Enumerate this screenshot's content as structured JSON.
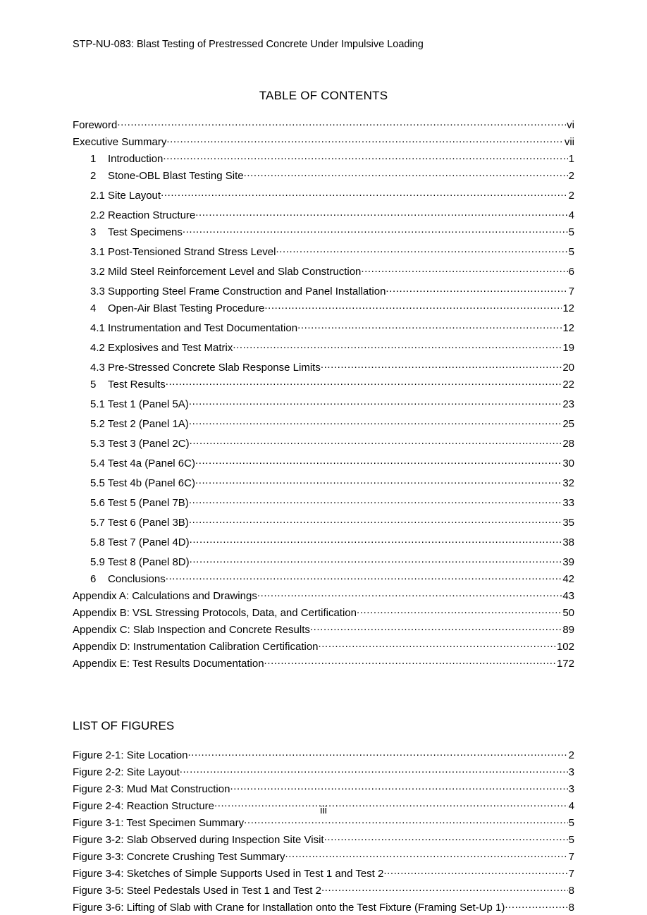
{
  "header": "STP-NU-083: Blast Testing of Prestressed Concrete Under Impulsive Loading",
  "toc_title": "TABLE OF CONTENTS",
  "lof_title": "LIST OF FIGURES",
  "page_number": "iii",
  "toc": [
    {
      "num": "",
      "label": "Foreword",
      "page": "vi",
      "indent": 0
    },
    {
      "num": "",
      "label": "Executive Summary",
      "page": " vii",
      "indent": 0
    },
    {
      "num": "1",
      "label": "Introduction",
      "page": "1",
      "indent": 1
    },
    {
      "num": "2",
      "label": "Stone-OBL Blast Testing Site",
      "page": "2",
      "indent": 1
    },
    {
      "num": "",
      "label": "2.1 Site Layout",
      "page": "2",
      "indent": 2,
      "gap": true
    },
    {
      "num": "",
      "label": "2.2 Reaction Structure",
      "page": "4",
      "indent": 2,
      "gap": true
    },
    {
      "num": "3",
      "label": "Test Specimens",
      "page": "5",
      "indent": 1
    },
    {
      "num": "",
      "label": "3.1 Post-Tensioned Strand Stress Level",
      "page": "5",
      "indent": 2,
      "gap": true
    },
    {
      "num": "",
      "label": "3.2 Mild Steel Reinforcement Level and Slab Construction",
      "page": "6",
      "indent": 2,
      "gap": true
    },
    {
      "num": "",
      "label": "3.3 Supporting Steel Frame Construction and Panel Installation",
      "page": "7",
      "indent": 2,
      "gap": true
    },
    {
      "num": "4",
      "label": "Open-Air Blast Testing Procedure",
      "page": "12",
      "indent": 1
    },
    {
      "num": "",
      "label": "4.1 Instrumentation and Test Documentation",
      "page": "12",
      "indent": 2,
      "gap": true
    },
    {
      "num": "",
      "label": "4.2 Explosives and Test Matrix",
      "page": "19",
      "indent": 2,
      "gap": true
    },
    {
      "num": "",
      "label": "4.3 Pre-Stressed Concrete Slab Response Limits",
      "page": "20",
      "indent": 2,
      "gap": true
    },
    {
      "num": "5",
      "label": "Test Results",
      "page": "22",
      "indent": 1
    },
    {
      "num": "",
      "label": "5.1 Test 1 (Panel 5A)",
      "page": "23",
      "indent": 2,
      "gap": true
    },
    {
      "num": "",
      "label": "5.2 Test 2 (Panel 1A)",
      "page": "25",
      "indent": 2,
      "gap": true
    },
    {
      "num": "",
      "label": "5.3 Test 3 (Panel 2C)",
      "page": "28",
      "indent": 2,
      "gap": true
    },
    {
      "num": "",
      "label": "5.4 Test 4a (Panel 6C)",
      "page": "30",
      "indent": 2,
      "gap": true
    },
    {
      "num": "",
      "label": "5.5 Test 4b (Panel 6C)",
      "page": "32",
      "indent": 2,
      "gap": true
    },
    {
      "num": "",
      "label": "5.6 Test 5 (Panel 7B)",
      "page": "33",
      "indent": 2,
      "gap": true
    },
    {
      "num": "",
      "label": "5.7 Test 6 (Panel 3B)",
      "page": "35",
      "indent": 2,
      "gap": true
    },
    {
      "num": "",
      "label": "5.8 Test 7 (Panel 4D)",
      "page": "38",
      "indent": 2,
      "gap": true
    },
    {
      "num": "",
      "label": "5.9 Test 8 (Panel 8D)",
      "page": "39",
      "indent": 2,
      "gap": true
    },
    {
      "num": "6",
      "label": "Conclusions",
      "page": "42",
      "indent": 1
    },
    {
      "num": "",
      "label": "Appendix A:  Calculations and Drawings",
      "page": "43",
      "indent": 0
    },
    {
      "num": "",
      "label": "Appendix B:  VSL Stressing Protocols, Data, and Certification",
      "page": "50",
      "indent": 0
    },
    {
      "num": "",
      "label": "Appendix C:  Slab Inspection and Concrete Results",
      "page": "89",
      "indent": 0
    },
    {
      "num": "",
      "label": "Appendix D:  Instrumentation Calibration Certification",
      "page": "102",
      "indent": 0
    },
    {
      "num": "",
      "label": "Appendix E:  Test Results Documentation",
      "page": "172",
      "indent": 0
    }
  ],
  "lof": [
    {
      "label": "Figure 2-1: Site Location",
      "page": "2"
    },
    {
      "label": "Figure 2-2: Site Layout",
      "page": "3"
    },
    {
      "label": "Figure 2-3: Mud Mat Construction",
      "page": "3"
    },
    {
      "label": "Figure 2-4: Reaction Structure",
      "page": "4"
    },
    {
      "label": "Figure 3-1:  Test Specimen Summary",
      "page": "5"
    },
    {
      "label": "Figure 3-2:  Slab Observed during Inspection Site Visit",
      "page": "5"
    },
    {
      "label": "Figure 3-3:  Concrete Crushing Test Summary",
      "page": "7"
    },
    {
      "label": "Figure 3-4:  Sketches of Simple Supports Used in Test 1 and Test 2",
      "page": "7"
    },
    {
      "label": "Figure 3-5:  Steel Pedestals Used in Test 1 and Test 2",
      "page": "8"
    },
    {
      "label": "Figure 3-6:  Lifting of Slab with Crane for Installation onto the Test Fixture (Framing Set-Up 1)",
      "page": "8"
    }
  ]
}
